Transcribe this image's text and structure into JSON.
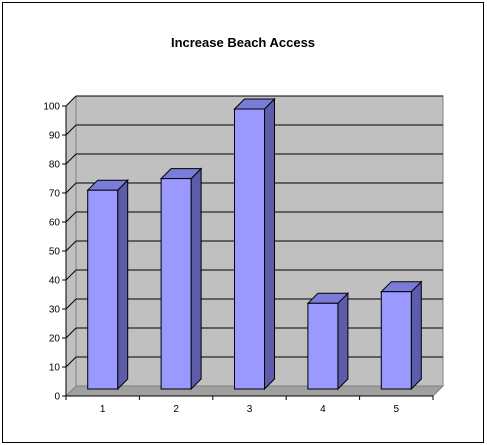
{
  "chart_data": {
    "type": "bar",
    "title": "Increase Beach Access",
    "xlabel": "",
    "ylabel": "",
    "categories": [
      "1",
      "2",
      "3",
      "4",
      "5"
    ],
    "values": [
      72,
      76,
      100,
      33,
      37
    ],
    "ylim": [
      0,
      100
    ],
    "yticks": [
      0,
      10,
      20,
      30,
      40,
      50,
      60,
      70,
      80,
      90,
      100
    ],
    "grid": true,
    "legend": "none",
    "colors": {
      "bar_face": "#9999ff",
      "bar_side": "#5c5caa",
      "bar_top": "#7b7bd9",
      "plot_background": "#c0c0c0",
      "grid": "#000000"
    }
  }
}
